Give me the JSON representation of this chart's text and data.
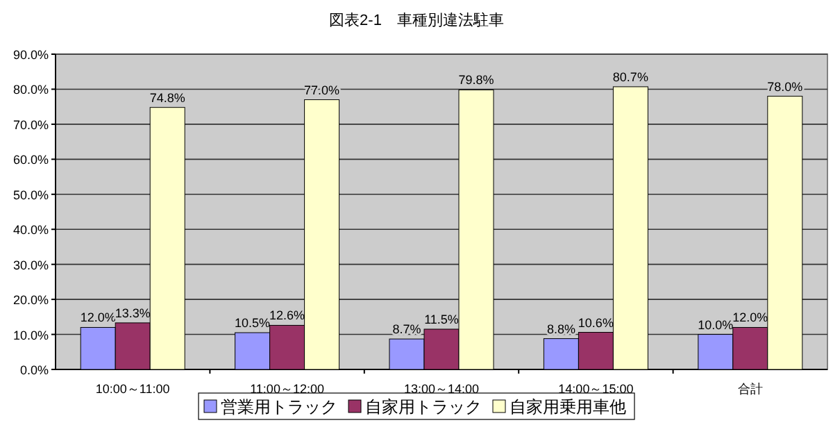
{
  "chart_data": {
    "type": "bar",
    "title": "図表2-1　車種別違法駐車",
    "categories": [
      "10:00～11:00",
      "11:00～12:00",
      "13:00～14:00",
      "14:00～15:00",
      "合計"
    ],
    "series": [
      {
        "name": "営業用トラック",
        "color": "#9999ff",
        "values": [
          12.0,
          10.5,
          8.7,
          8.8,
          10.0
        ],
        "value_labels": [
          "12.0%",
          "10.5%",
          "8.7%",
          "8.8%",
          "10.0%"
        ]
      },
      {
        "name": "自家用トラック",
        "color": "#993366",
        "values": [
          13.3,
          12.6,
          11.5,
          10.6,
          12.0
        ],
        "value_labels": [
          "13.3%",
          "12.6%",
          "11.5%",
          "10.6%",
          "12.0%"
        ]
      },
      {
        "name": "自家用乗用車他",
        "color": "#ffffcc",
        "values": [
          74.8,
          77.0,
          79.8,
          80.7,
          78.0
        ],
        "value_labels": [
          "74.8%",
          "77.0%",
          "79.8%",
          "80.7%",
          "78.0%"
        ]
      }
    ],
    "ylim": [
      0,
      90
    ],
    "yticks": [
      {
        "value": 0,
        "label": "0.0%"
      },
      {
        "value": 10,
        "label": "10.0%"
      },
      {
        "value": 20,
        "label": "20.0%"
      },
      {
        "value": 30,
        "label": "30.0%"
      },
      {
        "value": 40,
        "label": "40.0%"
      },
      {
        "value": 50,
        "label": "50.0%"
      },
      {
        "value": 60,
        "label": "60.0%"
      },
      {
        "value": 70,
        "label": "70.0%"
      },
      {
        "value": 80,
        "label": "80.0%"
      },
      {
        "value": 90,
        "label": "90.0%"
      }
    ],
    "grid": "y",
    "legend": "bottom"
  }
}
